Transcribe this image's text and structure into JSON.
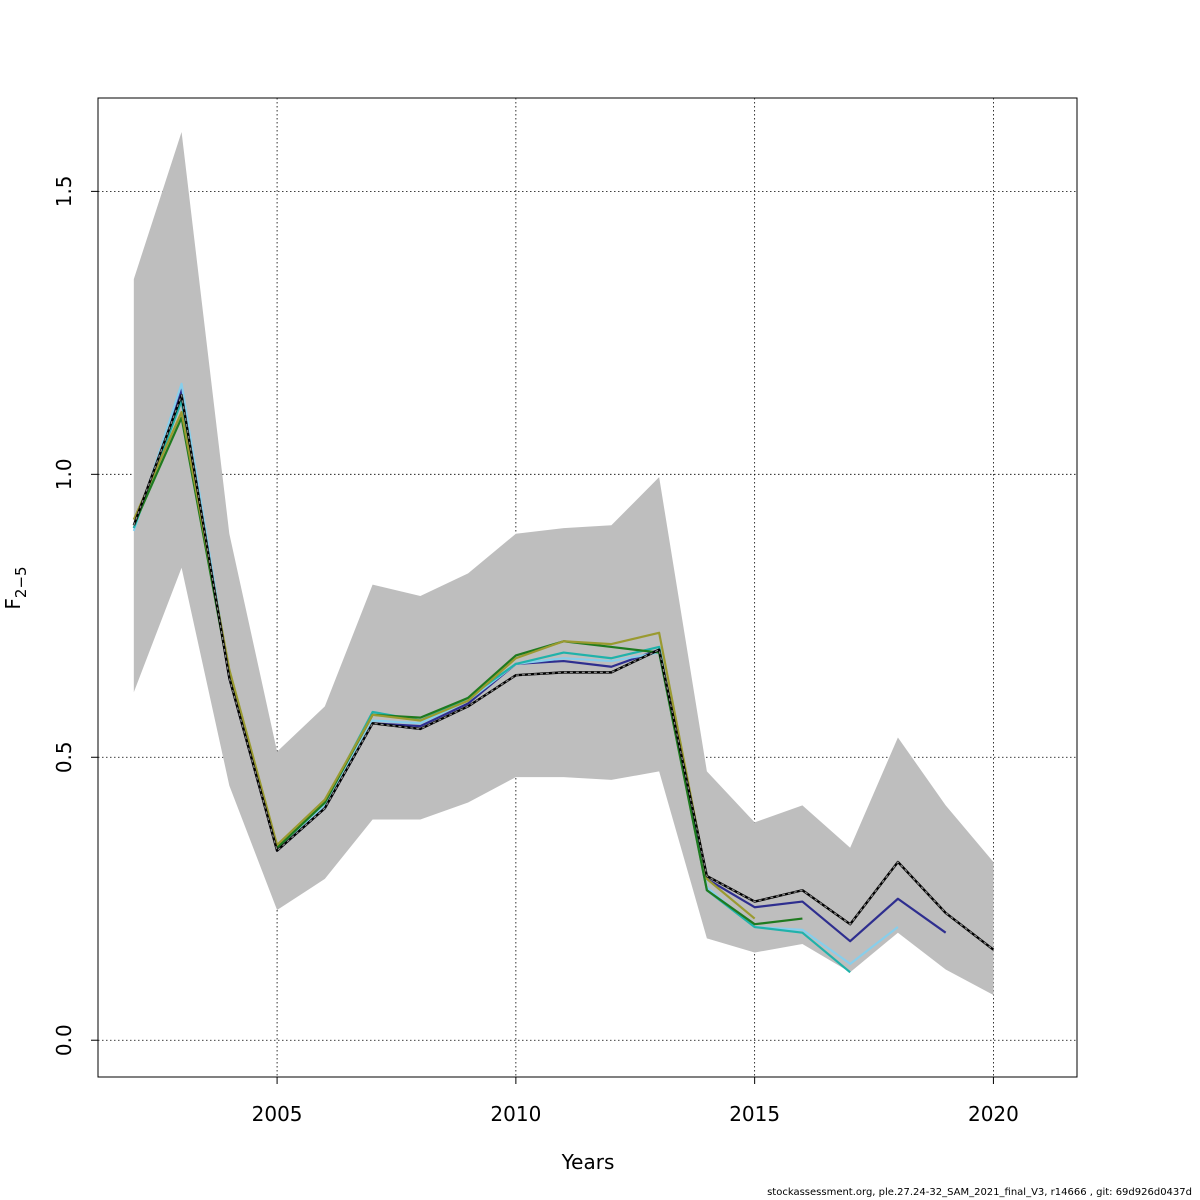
{
  "chart_data": {
    "type": "line",
    "xlabel": "Years",
    "ylabel": {
      "main": "F",
      "sub": "2−5"
    },
    "xlim": [
      2001.25,
      2021.75
    ],
    "ylim": [
      -0.065,
      1.665
    ],
    "x_ticks": [
      2005,
      2010,
      2015,
      2020
    ],
    "y_ticks": [
      0.0,
      0.5,
      1.0,
      1.5
    ],
    "x_tick_labels": [
      "2005",
      "2010",
      "2015",
      "2020"
    ],
    "y_tick_labels": [
      "0.0",
      "0.5",
      "1.0",
      "1.5"
    ],
    "grid": true,
    "confidence_band": {
      "x": [
        2002,
        2003,
        2004,
        2005,
        2006,
        2007,
        2008,
        2009,
        2010,
        2011,
        2012,
        2013,
        2014,
        2015,
        2016,
        2017,
        2018,
        2019,
        2020
      ],
      "upper": [
        1.345,
        1.605,
        0.895,
        0.51,
        0.59,
        0.805,
        0.785,
        0.825,
        0.895,
        0.905,
        0.91,
        0.995,
        0.475,
        0.385,
        0.415,
        0.34,
        0.535,
        0.415,
        0.315
      ],
      "lower": [
        0.615,
        0.835,
        0.45,
        0.23,
        0.285,
        0.39,
        0.39,
        0.42,
        0.465,
        0.465,
        0.46,
        0.475,
        0.18,
        0.155,
        0.17,
        0.12,
        0.19,
        0.125,
        0.08
      ],
      "color": "#bebebe"
    },
    "series": [
      {
        "color": "#000000",
        "dashed": true,
        "x": [
          2002,
          2003,
          2004,
          2005,
          2006,
          2007,
          2008,
          2009,
          2010,
          2011,
          2012,
          2013,
          2014,
          2015,
          2016,
          2017,
          2018,
          2019,
          2020
        ],
        "values": [
          0.91,
          1.14,
          0.64,
          0.335,
          0.41,
          0.56,
          0.55,
          0.59,
          0.645,
          0.65,
          0.65,
          0.69,
          0.29,
          0.245,
          0.265,
          0.205,
          0.315,
          0.225,
          0.16
        ]
      },
      {
        "color": "#2e2e8f",
        "x": [
          2002,
          2003,
          2004,
          2005,
          2006,
          2007,
          2008,
          2009,
          2010,
          2011,
          2012,
          2013,
          2014,
          2015,
          2016,
          2017,
          2018,
          2019
        ],
        "values": [
          0.905,
          1.15,
          0.64,
          0.335,
          0.41,
          0.56,
          0.555,
          0.595,
          0.665,
          0.67,
          0.66,
          0.69,
          0.285,
          0.235,
          0.245,
          0.175,
          0.25,
          0.19
        ]
      },
      {
        "color": "#87ceeb",
        "x": [
          2002,
          2003,
          2004,
          2005,
          2006,
          2007,
          2008,
          2009,
          2010,
          2011,
          2012,
          2013,
          2014,
          2015,
          2016,
          2017,
          2018
        ],
        "values": [
          0.9,
          1.16,
          0.645,
          0.34,
          0.415,
          0.565,
          0.56,
          0.6,
          0.665,
          0.675,
          0.67,
          0.685,
          0.27,
          0.2,
          0.195,
          0.135,
          0.2
        ]
      },
      {
        "color": "#20b2aa",
        "x": [
          2002,
          2003,
          2004,
          2005,
          2006,
          2007,
          2008,
          2009,
          2010,
          2011,
          2012,
          2013,
          2014,
          2015,
          2016,
          2017
        ],
        "values": [
          0.905,
          1.13,
          0.645,
          0.34,
          0.42,
          0.58,
          0.565,
          0.605,
          0.665,
          0.685,
          0.675,
          0.695,
          0.265,
          0.2,
          0.19,
          0.12
        ]
      },
      {
        "color": "#1f7a1f",
        "x": [
          2002,
          2003,
          2004,
          2005,
          2006,
          2007,
          2008,
          2009,
          2010,
          2011,
          2012,
          2013,
          2014,
          2015,
          2016
        ],
        "values": [
          0.91,
          1.1,
          0.645,
          0.34,
          0.42,
          0.575,
          0.57,
          0.605,
          0.68,
          0.705,
          0.695,
          0.685,
          0.265,
          0.205,
          0.215
        ]
      },
      {
        "color": "#9a9a30",
        "x": [
          2002,
          2003,
          2004,
          2005,
          2006,
          2007,
          2008,
          2009,
          2010,
          2011,
          2012,
          2013,
          2014,
          2015
        ],
        "values": [
          0.92,
          1.11,
          0.655,
          0.345,
          0.425,
          0.575,
          0.565,
          0.6,
          0.675,
          0.705,
          0.7,
          0.72,
          0.285,
          0.215
        ]
      }
    ]
  },
  "footer": "stockassessment.org, ple.27.24-32_SAM_2021_final_V3, r14666 , git: 69d926d0437d"
}
